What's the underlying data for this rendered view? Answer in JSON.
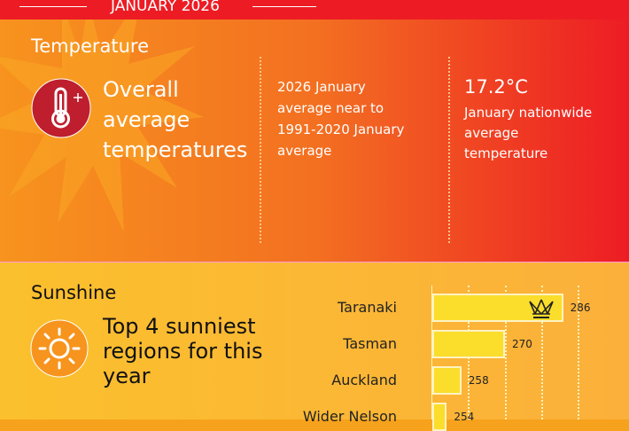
{
  "header": {
    "title": "JANUARY 2026"
  },
  "temperature": {
    "section_title": "Temperature",
    "headline": [
      "Overall",
      "average",
      "temperatures"
    ],
    "comparison": [
      "2026 January",
      "average near to",
      "1991-2020 January",
      "average"
    ],
    "value": "17.2°C",
    "value_caption": [
      "January nationwide",
      "average",
      "temperature"
    ]
  },
  "sunshine": {
    "section_title": "Sunshine",
    "headline": [
      "Top 4 sunniest",
      "regions for this",
      "year"
    ]
  },
  "chart_data": {
    "type": "bar",
    "orientation": "horizontal",
    "categories": [
      "Taranaki",
      "Tasman",
      "Auckland",
      "Wider Nelson"
    ],
    "values": [
      286,
      270,
      258,
      254
    ],
    "value_labels": [
      "286",
      "270",
      "258",
      "254"
    ],
    "highlight": "Taranaki",
    "axis_min": 250,
    "grid": true
  },
  "colors": {
    "header": "#ed1c24",
    "icon_bg": "#be1e2d",
    "bar": "#fbdd2c"
  }
}
